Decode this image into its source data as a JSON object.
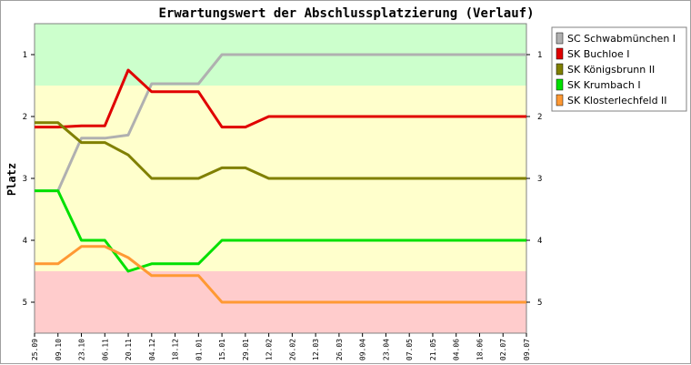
{
  "chart_data": {
    "type": "line",
    "title": "Erwartungswert der Abschlussplatzierung (Verlauf)",
    "ylabel": "Platz",
    "ylim": [
      5.5,
      0.5
    ],
    "yticks": [
      "1",
      "2",
      "3",
      "4",
      "5"
    ],
    "x": [
      "25.09",
      "09.10",
      "23.10",
      "06.11",
      "20.11",
      "04.12",
      "18.12",
      "01.01",
      "15.01",
      "29.01",
      "12.02",
      "26.02",
      "12.03",
      "26.03",
      "09.04",
      "23.04",
      "07.05",
      "21.05",
      "04.06",
      "18.06",
      "02.07",
      "09.07"
    ],
    "bands": [
      {
        "from": 0.5,
        "to": 1.5,
        "color": "#ccffcc"
      },
      {
        "from": 1.5,
        "to": 4.5,
        "color": "#ffffcc"
      },
      {
        "from": 4.5,
        "to": 5.5,
        "color": "#ffcccc"
      }
    ],
    "series": [
      {
        "name": "SC Schwabmünchen I",
        "color": "#b0b0b0",
        "values": [
          3.2,
          3.2,
          2.35,
          2.35,
          2.3,
          1.47,
          1.47,
          1.47,
          1.0,
          1.0,
          1.0,
          1.0,
          1.0,
          1.0,
          1.0,
          1.0,
          1.0,
          1.0,
          1.0,
          1.0,
          1.0,
          1.0
        ]
      },
      {
        "name": "SK Buchloe I",
        "color": "#e00000",
        "values": [
          2.17,
          2.17,
          2.15,
          2.15,
          1.25,
          1.6,
          1.6,
          1.6,
          2.17,
          2.17,
          2.0,
          2.0,
          2.0,
          2.0,
          2.0,
          2.0,
          2.0,
          2.0,
          2.0,
          2.0,
          2.0,
          2.0
        ]
      },
      {
        "name": "SK Königsbrunn II",
        "color": "#808000",
        "values": [
          2.1,
          2.1,
          2.42,
          2.42,
          2.62,
          3.0,
          3.0,
          3.0,
          2.83,
          2.83,
          3.0,
          3.0,
          3.0,
          3.0,
          3.0,
          3.0,
          3.0,
          3.0,
          3.0,
          3.0,
          3.0,
          3.0
        ]
      },
      {
        "name": "SK Krumbach I",
        "color": "#00e000",
        "values": [
          3.2,
          3.2,
          4.0,
          4.0,
          4.5,
          4.38,
          4.38,
          4.38,
          4.0,
          4.0,
          4.0,
          4.0,
          4.0,
          4.0,
          4.0,
          4.0,
          4.0,
          4.0,
          4.0,
          4.0,
          4.0,
          4.0
        ]
      },
      {
        "name": "SK Klosterlechfeld II",
        "color": "#ff9933",
        "values": [
          4.38,
          4.38,
          4.1,
          4.1,
          4.28,
          4.57,
          4.57,
          4.57,
          5.0,
          5.0,
          5.0,
          5.0,
          5.0,
          5.0,
          5.0,
          5.0,
          5.0,
          5.0,
          5.0,
          5.0,
          5.0,
          5.0
        ]
      }
    ]
  }
}
